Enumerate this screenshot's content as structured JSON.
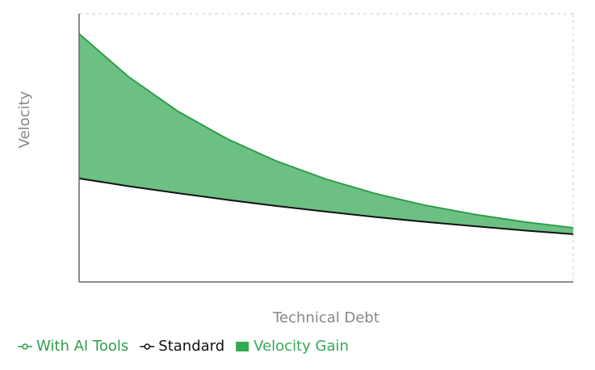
{
  "chart_data": {
    "type": "area-between",
    "x_label": "Technical Debt",
    "y_label": "Velocity",
    "x": [
      0,
      10,
      20,
      30,
      40,
      50,
      60,
      70,
      80,
      90,
      100
    ],
    "xlim": [
      0,
      100
    ],
    "ylim": [
      0,
      100
    ],
    "series": [
      {
        "name": "With AI Tools",
        "color": "#2e9e48",
        "values": [
          92.5,
          76.5,
          63.6,
          53.3,
          45.0,
          38.3,
          32.9,
          28.6,
          25.2,
          22.4,
          20.2
        ]
      },
      {
        "name": "Standard",
        "color": "#111111",
        "values": [
          38.6,
          35.7,
          33.1,
          30.6,
          28.3,
          26.2,
          24.2,
          22.4,
          20.8,
          19.2,
          17.8
        ]
      }
    ],
    "area": {
      "name": "Velocity Gain",
      "color": "#34a853"
    },
    "legend": "bottom-left"
  }
}
